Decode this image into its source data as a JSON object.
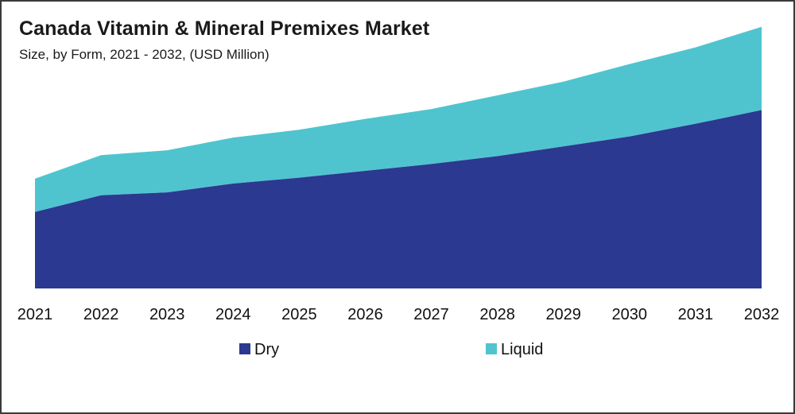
{
  "chart_data": {
    "type": "area",
    "stacked": true,
    "title": "Canada Vitamin & Mineral Premixes Market",
    "subtitle": "Size, by Form, 2021 - 2032, (USD Million)",
    "xlabel": "",
    "ylabel": "",
    "categories": [
      "2021",
      "2022",
      "2023",
      "2024",
      "2025",
      "2026",
      "2027",
      "2028",
      "2029",
      "2030",
      "2031",
      "2032"
    ],
    "series": [
      {
        "name": "Dry",
        "color": "#2b3990",
        "values": [
          78,
          95,
          98,
          107,
          113,
          120,
          127,
          135,
          145,
          155,
          168,
          182
        ]
      },
      {
        "name": "Liquid",
        "color": "#4fc4cf",
        "values": [
          34,
          41,
          43,
          47,
          49,
          53,
          56,
          62,
          66,
          74,
          78,
          85
        ]
      }
    ],
    "ylim": [
      0,
      270
    ],
    "grid": false,
    "legend_position": "bottom"
  }
}
